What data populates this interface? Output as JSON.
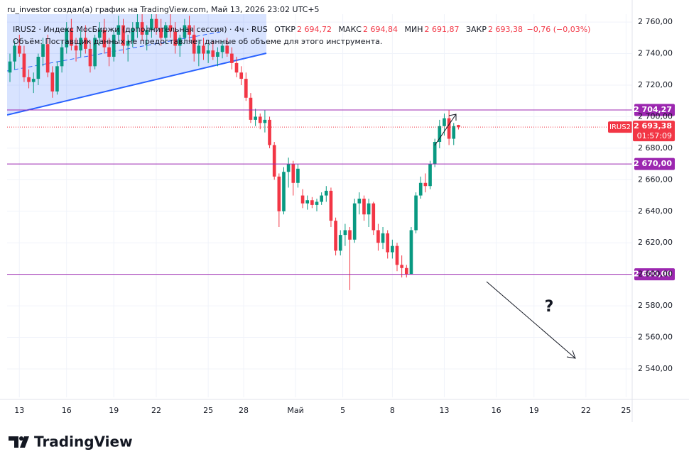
{
  "chart_data": {
    "type": "candlestick",
    "attribution": "ru_investor создал(а) график на TradingView.com, Май 13, 2026 23:02 UTC+5",
    "legend": {
      "title": "IRUS2 · Индекс МосБиржи (дополнительная сессия) · 4ч · RUS",
      "labels": [
        "ОТКР",
        "МАКС",
        "МИН",
        "ЗАКР"
      ],
      "values": [
        2694.72,
        2694.84,
        2691.87,
        2693.38
      ],
      "value_labels": [
        "2 694,72",
        "2 694,84",
        "2 691,87",
        "2 693,38"
      ],
      "change": "−0,76 (−0,03%)",
      "volume_note": "Объём: Поставщик данных не предоставляет данные об объеме для этого инструмента."
    },
    "up_color": "#089981",
    "down_color": "#f23645",
    "open": [
      2728,
      2735,
      2745,
      2740,
      2725,
      2722,
      2724,
      2738,
      2746,
      2728,
      2716,
      2732,
      2744,
      2756,
      2745,
      2742,
      2750,
      2743,
      2732,
      2750,
      2755,
      2744,
      2738,
      2752,
      2758,
      2745,
      2748,
      2756,
      2760,
      2752,
      2755,
      2762,
      2756,
      2750,
      2758,
      2754,
      2745,
      2750,
      2758,
      2752,
      2740,
      2745,
      2740,
      2742,
      2738,
      2741,
      2745,
      2740,
      2734,
      2728,
      2724,
      2712,
      2698,
      2700,
      2696,
      2698,
      2682,
      2662,
      2640,
      2665,
      2670,
      2658,
      2650,
      2645,
      2647,
      2644,
      2646,
      2650,
      2653,
      2634,
      2615,
      2625,
      2628,
      2622,
      2645,
      2648,
      2638,
      2645,
      2628,
      2620,
      2626,
      2614,
      2618,
      2606,
      2604,
      2600,
      2628,
      2650,
      2658,
      2656,
      2670,
      2684,
      2694,
      2699,
      2686,
      2694.72
    ],
    "high": [
      2740,
      2748,
      2752,
      2745,
      2730,
      2728,
      2740,
      2750,
      2752,
      2732,
      2735,
      2748,
      2760,
      2762,
      2750,
      2755,
      2758,
      2748,
      2752,
      2760,
      2762,
      2750,
      2755,
      2764,
      2762,
      2752,
      2760,
      2765,
      2766,
      2758,
      2766,
      2768,
      2762,
      2760,
      2765,
      2760,
      2752,
      2762,
      2764,
      2758,
      2748,
      2750,
      2746,
      2748,
      2744,
      2748,
      2750,
      2744,
      2738,
      2732,
      2728,
      2715,
      2705,
      2702,
      2704,
      2700,
      2684,
      2664,
      2668,
      2674,
      2672,
      2670,
      2654,
      2650,
      2649,
      2648,
      2652,
      2656,
      2655,
      2636,
      2628,
      2632,
      2630,
      2648,
      2652,
      2650,
      2648,
      2646,
      2632,
      2630,
      2628,
      2622,
      2620,
      2612,
      2606,
      2630,
      2652,
      2662,
      2664,
      2672,
      2686,
      2698,
      2702,
      2704,
      2696,
      2694.84
    ],
    "low": [
      2722,
      2730,
      2738,
      2722,
      2718,
      2715,
      2720,
      2732,
      2725,
      2712,
      2714,
      2728,
      2740,
      2742,
      2735,
      2738,
      2740,
      2728,
      2730,
      2745,
      2740,
      2732,
      2735,
      2748,
      2740,
      2735,
      2744,
      2750,
      2748,
      2742,
      2750,
      2752,
      2745,
      2746,
      2750,
      2740,
      2738,
      2746,
      2748,
      2735,
      2732,
      2736,
      2734,
      2736,
      2732,
      2737,
      2738,
      2730,
      2725,
      2720,
      2710,
      2696,
      2694,
      2692,
      2690,
      2680,
      2660,
      2630,
      2638,
      2655,
      2650,
      2655,
      2642,
      2641,
      2642,
      2640,
      2644,
      2646,
      2630,
      2612,
      2612,
      2618,
      2590,
      2620,
      2638,
      2634,
      2630,
      2625,
      2615,
      2616,
      2610,
      2610,
      2602,
      2598,
      2598,
      2600,
      2626,
      2648,
      2652,
      2654,
      2668,
      2680,
      2688,
      2682,
      2682,
      2691.87
    ],
    "close": [
      2735,
      2745,
      2740,
      2725,
      2722,
      2724,
      2738,
      2746,
      2728,
      2716,
      2732,
      2744,
      2756,
      2745,
      2742,
      2750,
      2743,
      2732,
      2750,
      2755,
      2744,
      2738,
      2752,
      2758,
      2745,
      2748,
      2756,
      2760,
      2752,
      2755,
      2762,
      2756,
      2750,
      2758,
      2754,
      2745,
      2750,
      2758,
      2752,
      2740,
      2745,
      2740,
      2742,
      2738,
      2741,
      2745,
      2740,
      2734,
      2728,
      2724,
      2712,
      2698,
      2700,
      2696,
      2698,
      2682,
      2662,
      2640,
      2665,
      2670,
      2658,
      2667,
      2645,
      2647,
      2644,
      2646,
      2650,
      2653,
      2634,
      2615,
      2625,
      2628,
      2622,
      2645,
      2648,
      2638,
      2645,
      2628,
      2620,
      2626,
      2614,
      2618,
      2606,
      2604,
      2600,
      2628,
      2650,
      2658,
      2656,
      2670,
      2684,
      2694,
      2699,
      2686,
      2694,
      2693.38
    ],
    "xlim": [
      -0.6,
      131.8
    ],
    "xticks": [
      {
        "value": 2,
        "label": "13"
      },
      {
        "value": 12,
        "label": "16"
      },
      {
        "value": 22,
        "label": "19"
      },
      {
        "value": 31,
        "label": "22"
      },
      {
        "value": 42,
        "label": "25"
      },
      {
        "value": 49.5,
        "label": "28"
      },
      {
        "value": 60.5,
        "label": "Май"
      },
      {
        "value": 70.5,
        "label": "5"
      },
      {
        "value": 81,
        "label": "8"
      },
      {
        "value": 92,
        "label": "13"
      },
      {
        "value": 103,
        "label": "16"
      },
      {
        "value": 111,
        "label": "19"
      },
      {
        "value": 122,
        "label": "22"
      },
      {
        "value": 130.5,
        "label": "25"
      }
    ],
    "ylim": [
      2522,
      2765
    ],
    "yticks": [
      {
        "value": 2540,
        "label": "2 540,00"
      },
      {
        "value": 2560,
        "label": "2 560,00"
      },
      {
        "value": 2580,
        "label": "2 580,00"
      },
      {
        "value": 2600,
        "label": "2 600,00"
      },
      {
        "value": 2620,
        "label": "2 620,00"
      },
      {
        "value": 2640,
        "label": "2 640,00"
      },
      {
        "value": 2660,
        "label": "2 660,00"
      },
      {
        "value": 2680,
        "label": "2 680,00"
      },
      {
        "value": 2700,
        "label": "2 700,00"
      },
      {
        "value": 2720,
        "label": "2 720,00"
      },
      {
        "value": 2740,
        "label": "2 740,00"
      },
      {
        "value": 2760,
        "label": "2 760,00"
      }
    ],
    "grid": true,
    "levels": [
      {
        "value": 2704.27,
        "label": "2 704,27"
      },
      {
        "value": 2670,
        "label": "2 670,00"
      },
      {
        "value": 2600,
        "label": "2 600,00"
      }
    ],
    "level_color": "#9c27b0",
    "price_tag": {
      "symbol": "IRUS2",
      "value": 2693.38,
      "label": "2 693,38",
      "countdown": "01:57:09"
    },
    "annotation": "?",
    "brand": "TradingView"
  }
}
